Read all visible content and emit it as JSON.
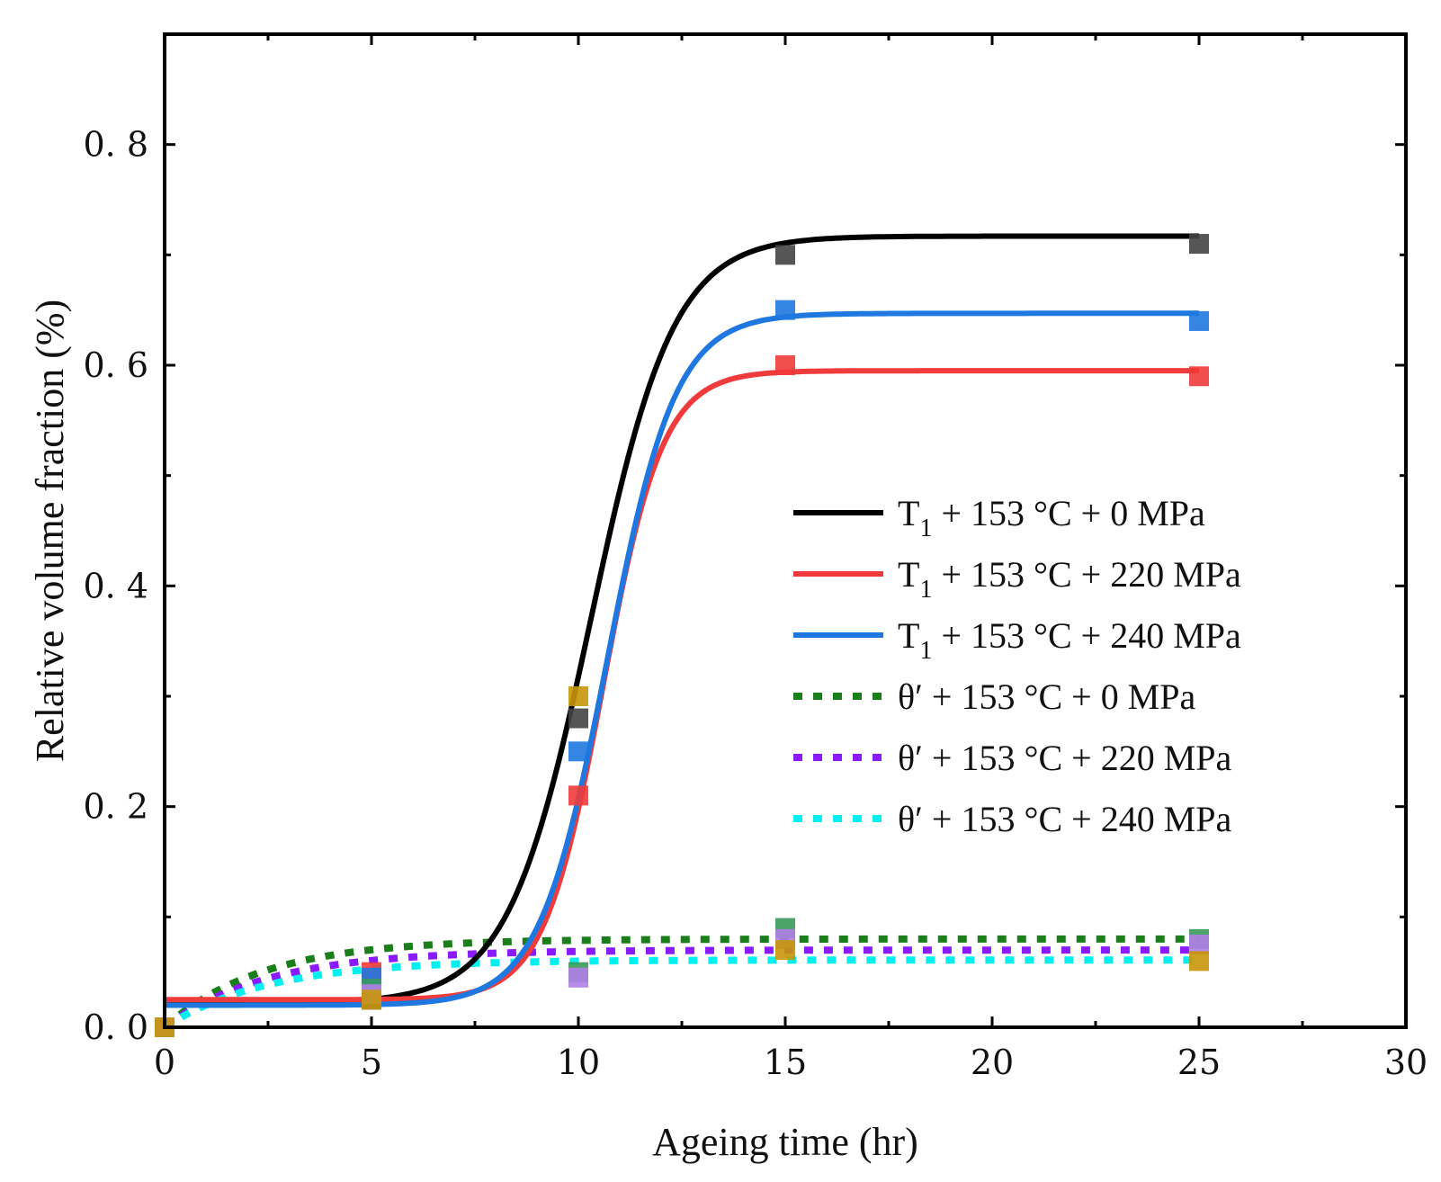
{
  "chart_data": {
    "type": "line",
    "title": "",
    "xlabel": "Ageing time (hr)",
    "ylabel": "Relative volume fraction (%)",
    "xlim": [
      0,
      30
    ],
    "ylim": [
      0,
      0.9
    ],
    "xticks": [
      0,
      5,
      10,
      15,
      20,
      25,
      30
    ],
    "xtick_labels": [
      "0",
      "5",
      "10",
      "15",
      "20",
      "25",
      "30"
    ],
    "yticks": [
      0,
      0.2,
      0.4,
      0.6,
      0.8
    ],
    "ytick_labels": [
      "0. 0",
      "0. 2",
      "0. 4",
      "0. 6",
      "0. 8"
    ],
    "grid": false,
    "legend_position": "center-right",
    "series": [
      {
        "name": "T1 + 153 °C + 0 MPa",
        "legend_main": "T",
        "legend_sub": "1",
        "legend_rest": " + 153 °C + 0 MPa",
        "color": "#000000",
        "marker_color": "#444444",
        "style": "solid",
        "fit": {
          "model": "sigmoid",
          "base": 0.022,
          "top": 0.717,
          "center": 10.3,
          "width": 1.0
        },
        "points": [
          {
            "x": 0,
            "y": 0.0
          },
          {
            "x": 5,
            "y": 0.025
          },
          {
            "x": 10,
            "y": 0.28
          },
          {
            "x": 15,
            "y": 0.7
          },
          {
            "x": 25,
            "y": 0.71
          }
        ]
      },
      {
        "name": "T1 + 153 °C + 220 MPa",
        "legend_main": "T",
        "legend_sub": "1",
        "legend_rest": " + 153 °C + 220 MPa",
        "color": "#ef3b3b",
        "marker_color": "#ef3b3b",
        "style": "solid",
        "fit": {
          "model": "sigmoid",
          "base": 0.025,
          "top": 0.595,
          "center": 10.6,
          "width": 0.72
        },
        "points": [
          {
            "x": 0,
            "y": 0.0
          },
          {
            "x": 5,
            "y": 0.05
          },
          {
            "x": 10,
            "y": 0.21
          },
          {
            "x": 15,
            "y": 0.6
          },
          {
            "x": 25,
            "y": 0.59
          }
        ]
      },
      {
        "name": "T1 + 153 °C + 240 MPa",
        "legend_main": "T",
        "legend_sub": "1",
        "legend_rest": " + 153 °C + 240 MPa",
        "color": "#1f78e0",
        "marker_color": "#1f78e0",
        "style": "solid",
        "fit": {
          "model": "sigmoid",
          "base": 0.02,
          "top": 0.647,
          "center": 10.7,
          "width": 0.82
        },
        "points": [
          {
            "x": 0,
            "y": 0.0
          },
          {
            "x": 5,
            "y": 0.045
          },
          {
            "x": 10,
            "y": 0.25
          },
          {
            "x": 15,
            "y": 0.65
          },
          {
            "x": 25,
            "y": 0.64
          }
        ]
      },
      {
        "name": "θ′ + 153 °C + 0 MPa",
        "legend_main": "θ′",
        "legend_sub": "",
        "legend_rest": " + 153 °C + 0 MPa",
        "color": "#1a7f1a",
        "marker_color": "#3a9a5a",
        "style": "dotted",
        "fit": {
          "model": "saturation",
          "top": 0.08,
          "rate": 0.42
        },
        "points": [
          {
            "x": 0,
            "y": 0.0
          },
          {
            "x": 5,
            "y": 0.035
          },
          {
            "x": 10,
            "y": 0.05
          },
          {
            "x": 15,
            "y": 0.09
          },
          {
            "x": 25,
            "y": 0.08
          }
        ]
      },
      {
        "name": "θ′ + 153 °C + 220 MPa",
        "legend_main": "θ′",
        "legend_sub": "",
        "legend_rest": " + 153 °C + 220 MPa",
        "color": "#8a1aff",
        "marker_color": "#b07ee8",
        "style": "dotted",
        "fit": {
          "model": "saturation",
          "top": 0.07,
          "rate": 0.4
        },
        "points": [
          {
            "x": 0,
            "y": 0.0
          },
          {
            "x": 5,
            "y": 0.03
          },
          {
            "x": 10,
            "y": 0.045
          },
          {
            "x": 15,
            "y": 0.08
          },
          {
            "x": 25,
            "y": 0.075
          }
        ]
      },
      {
        "name": "θ′ + 153 °C + 240 MPa",
        "legend_main": "θ′",
        "legend_sub": "",
        "legend_rest": " + 153 °C + 240 MPa",
        "color": "#00f0f0",
        "marker_color": "#c8960a",
        "style": "dotted",
        "fit": {
          "model": "saturation",
          "top": 0.061,
          "rate": 0.4
        },
        "points": [
          {
            "x": 0,
            "y": 0.0
          },
          {
            "x": 5,
            "y": 0.025
          },
          {
            "x": 10,
            "y": 0.3
          },
          {
            "x": 15,
            "y": 0.07
          },
          {
            "x": 25,
            "y": 0.06
          }
        ]
      }
    ]
  }
}
